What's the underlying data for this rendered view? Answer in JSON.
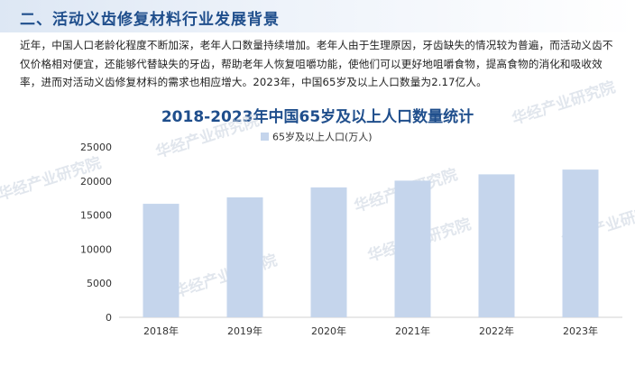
{
  "section": {
    "title": "二、活动义齿修复材料行业发展背景"
  },
  "intro_text": "近年，中国人口老龄化程度不断加深，老年人口数量持续增加。老年人由于生理原因，牙齿缺失的情况较为普遍，而活动义齿不仅价格相对便宜，还能够代替缺失的牙齿，帮助老年人恢复咀嚼功能，使他们可以更好地咀嚼食物，提高食物的消化和吸收效率，进而对活动义齿修复材料的需求也相应增大。2023年，中国65岁及以上人口数量为2.17亿人。",
  "watermark": "华经产业研究院",
  "colors": {
    "title": "#1f4e8c",
    "bar": "#c5d5ec",
    "header_band": "#dde7f4"
  },
  "chart_data": {
    "type": "bar",
    "title": "2018-2023年中国65岁及以上人口数量统计",
    "categories": [
      "2018年",
      "2019年",
      "2020年",
      "2021年",
      "2022年",
      "2023年"
    ],
    "series": [
      {
        "name": "65岁及以上人口(万人)",
        "values": [
          16658,
          17603,
          19064,
          20056,
          20978,
          21676
        ]
      }
    ],
    "ylim": [
      0,
      25000
    ],
    "yticks": [
      "0",
      "5000",
      "10000",
      "15000",
      "20000",
      "25000"
    ],
    "legend_position": "top",
    "grid": false
  }
}
